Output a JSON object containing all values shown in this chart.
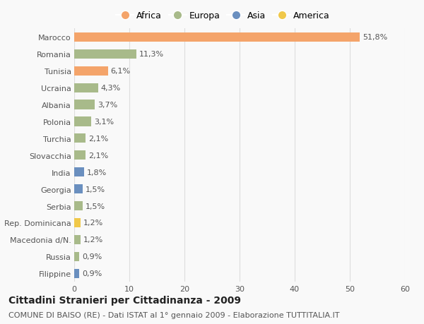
{
  "categories": [
    "Marocco",
    "Romania",
    "Tunisia",
    "Ucraina",
    "Albania",
    "Polonia",
    "Turchia",
    "Slovacchia",
    "India",
    "Georgia",
    "Serbia",
    "Rep. Dominicana",
    "Macedonia d/N.",
    "Russia",
    "Filippine"
  ],
  "values": [
    51.8,
    11.3,
    6.1,
    4.3,
    3.7,
    3.1,
    2.1,
    2.1,
    1.8,
    1.5,
    1.5,
    1.2,
    1.2,
    0.9,
    0.9
  ],
  "labels": [
    "51,8%",
    "11,3%",
    "6,1%",
    "4,3%",
    "3,7%",
    "3,1%",
    "2,1%",
    "2,1%",
    "1,8%",
    "1,5%",
    "1,5%",
    "1,2%",
    "1,2%",
    "0,9%",
    "0,9%"
  ],
  "continents": [
    "Africa",
    "Europa",
    "Africa",
    "Europa",
    "Europa",
    "Europa",
    "Europa",
    "Europa",
    "Asia",
    "Asia",
    "Europa",
    "America",
    "Europa",
    "Europa",
    "Asia"
  ],
  "continent_colors": {
    "Africa": "#F4A46A",
    "Europa": "#A8BA8A",
    "Asia": "#6A8FBF",
    "America": "#F0C84A"
  },
  "legend_order": [
    "Africa",
    "Europa",
    "Asia",
    "America"
  ],
  "xlim": [
    0,
    60
  ],
  "xticks": [
    0,
    10,
    20,
    30,
    40,
    50,
    60
  ],
  "title": "Cittadini Stranieri per Cittadinanza - 2009",
  "subtitle": "COMUNE DI BAISO (RE) - Dati ISTAT al 1° gennaio 2009 - Elaborazione TUTTITALIA.IT",
  "bg_color": "#f9f9f9",
  "bar_height": 0.55,
  "title_fontsize": 10,
  "subtitle_fontsize": 8,
  "label_fontsize": 8,
  "tick_fontsize": 8,
  "legend_fontsize": 9
}
